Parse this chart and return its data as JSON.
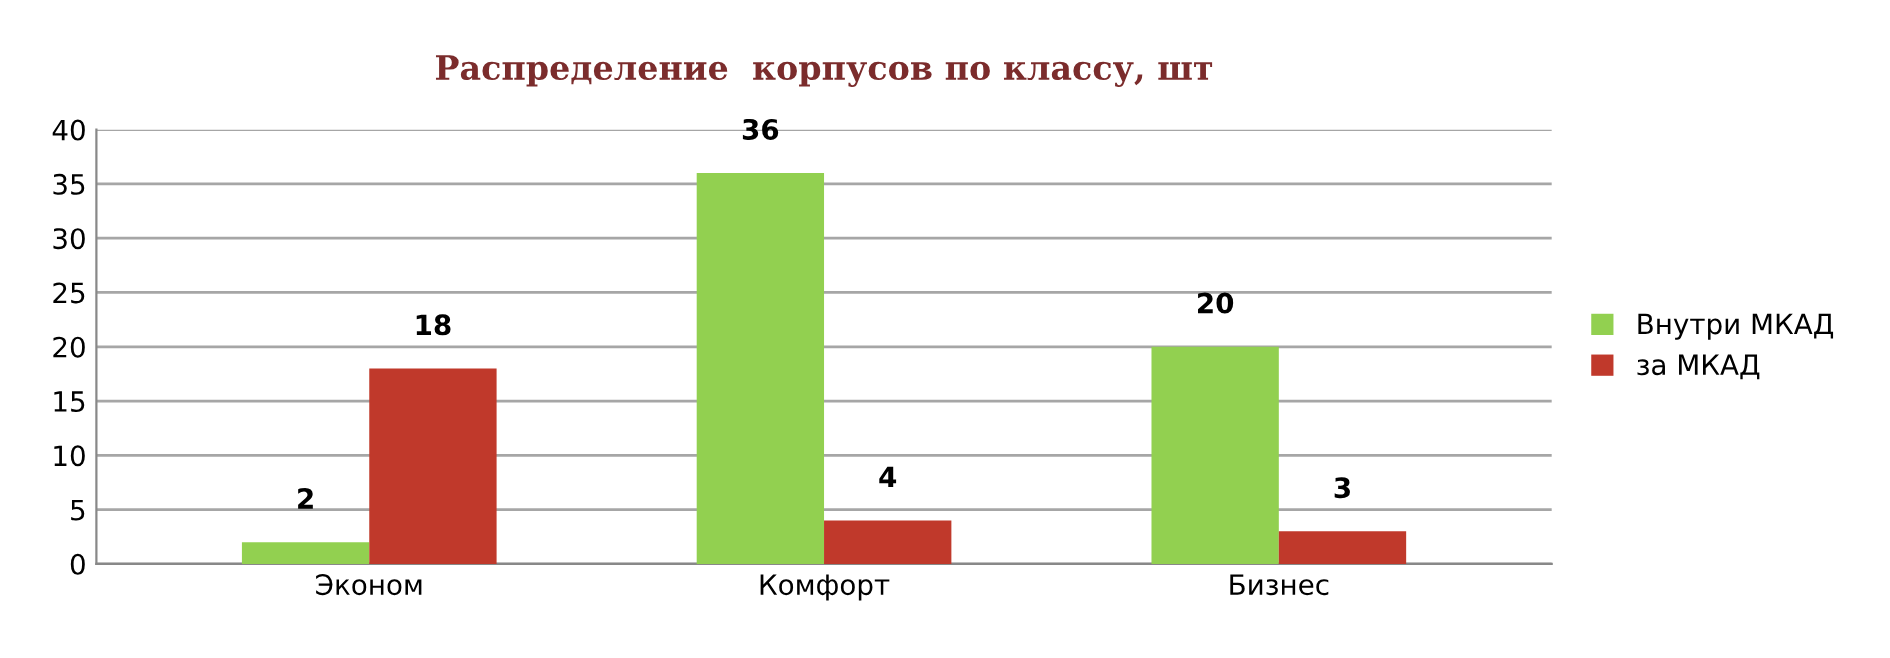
{
  "chart_data": {
    "type": "bar",
    "title": "Распределение  корпусов по классу, шт",
    "categories": [
      "Эконом",
      "Комфорт",
      "Бизнес"
    ],
    "series": [
      {
        "name": "Внутри МКАД",
        "color": "#92d050",
        "values": [
          2,
          36,
          20
        ]
      },
      {
        "name": "за МКАД",
        "color": "#c0392b",
        "values": [
          18,
          4,
          3
        ]
      }
    ],
    "ylim": [
      0,
      40
    ],
    "yticks": [
      0,
      5,
      10,
      15,
      20,
      25,
      30,
      35,
      40
    ],
    "grid": "y",
    "legend": "right",
    "data_labels": true
  }
}
